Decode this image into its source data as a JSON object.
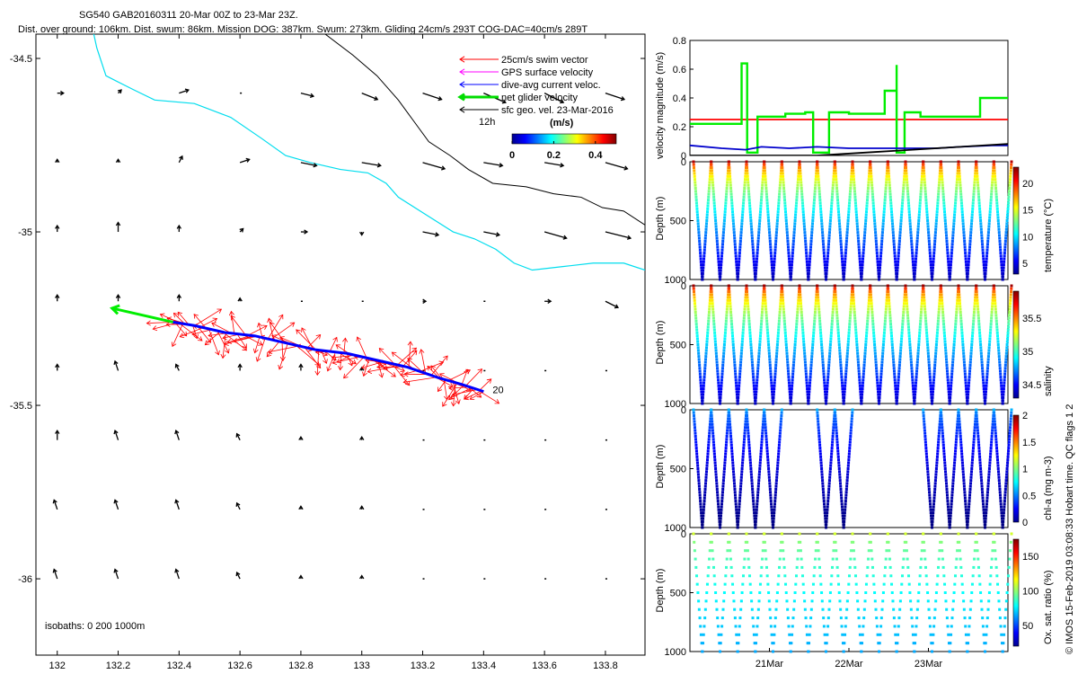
{
  "header": {
    "title_line1": "SG540 GAB20160311 20-Mar 00Z to 23-Mar 23Z.",
    "title_line2": "Dist. over ground: 106km. Dist. swum: 86km. Mission DOG: 387km. Swum: 273km. Gliding 24cm/s 293T COG-DAC=40cm/s 289T"
  },
  "side_note": "© IMOS 15-Feb-2019 03:08:33 Hobart time. QC flags 1  2",
  "chart_data": [
    {
      "type": "map",
      "xlim": [
        131.93,
        133.93
      ],
      "ylim": [
        -36.22,
        -34.43
      ],
      "xticks": [
        132,
        132.2,
        132.4,
        132.6,
        132.8,
        133,
        133.2,
        133.4,
        133.6,
        133.8
      ],
      "xtick_labels": [
        "132",
        "132.2",
        "132.4",
        "132.6",
        "132.8",
        "133",
        "133.2",
        "133.4",
        "133.6",
        "133.8"
      ],
      "yticks": [
        -34.5,
        -35,
        -35.5,
        -36
      ],
      "ytick_labels": [
        "-34.5",
        "-35",
        "-35.5",
        "-36"
      ],
      "legend": {
        "placement": "top-right",
        "items": [
          {
            "label": "25cm/s swim vector",
            "color": "#ff0000"
          },
          {
            "label": "GPS surface velocity",
            "color": "#ff00ff"
          },
          {
            "label": "dive-avg current veloc.",
            "color": "#0000ff"
          },
          {
            "label": "net glider velocity",
            "color": "#00dd00"
          },
          {
            "label": "sfc geo. vel. 23-Mar-2016",
            "color": "#000000"
          }
        ],
        "extra_label": "12h"
      },
      "colorbar": {
        "label": "(m/s)",
        "ticks": [
          0,
          0.2,
          0.4
        ],
        "tick_labels": [
          "0",
          "0.2",
          "0.4"
        ],
        "range": [
          0,
          0.5
        ]
      },
      "isobath_label": "isobaths: 0   200   1000m",
      "isobath_200": [
        [
          132.12,
          -34.43
        ],
        [
          132.13,
          -34.47
        ],
        [
          132.16,
          -34.55
        ],
        [
          132.25,
          -34.59
        ],
        [
          132.32,
          -34.62
        ],
        [
          132.45,
          -34.63
        ],
        [
          132.57,
          -34.67
        ],
        [
          132.67,
          -34.73
        ],
        [
          132.75,
          -34.78
        ],
        [
          132.83,
          -34.8
        ],
        [
          132.93,
          -34.82
        ],
        [
          133.02,
          -34.83
        ],
        [
          133.08,
          -34.86
        ],
        [
          133.12,
          -34.9
        ],
        [
          133.21,
          -34.95
        ],
        [
          133.3,
          -35.0
        ],
        [
          133.37,
          -35.02
        ],
        [
          133.44,
          -35.05
        ],
        [
          133.5,
          -35.09
        ],
        [
          133.56,
          -35.11
        ],
        [
          133.66,
          -35.1
        ],
        [
          133.76,
          -35.09
        ],
        [
          133.86,
          -35.09
        ],
        [
          133.93,
          -35.11
        ]
      ],
      "isobath_1000": [
        [
          132.88,
          -34.43
        ],
        [
          132.97,
          -34.49
        ],
        [
          133.05,
          -34.55
        ],
        [
          133.12,
          -34.62
        ],
        [
          133.17,
          -34.68
        ],
        [
          133.22,
          -34.74
        ],
        [
          133.29,
          -34.78
        ],
        [
          133.35,
          -34.82
        ],
        [
          133.43,
          -34.86
        ],
        [
          133.54,
          -34.87
        ],
        [
          133.63,
          -34.89
        ],
        [
          133.72,
          -34.9
        ],
        [
          133.79,
          -34.93
        ],
        [
          133.86,
          -34.94
        ],
        [
          133.93,
          -34.98
        ]
      ],
      "track": [
        [
          132.38,
          -35.26
        ],
        [
          132.45,
          -35.27
        ],
        [
          132.55,
          -35.29
        ],
        [
          132.65,
          -35.3
        ],
        [
          132.75,
          -35.32
        ],
        [
          132.85,
          -35.34
        ],
        [
          132.95,
          -35.35
        ],
        [
          133.05,
          -35.37
        ],
        [
          133.15,
          -35.39
        ],
        [
          133.25,
          -35.42
        ],
        [
          133.33,
          -35.44
        ],
        [
          133.4,
          -35.46
        ]
      ],
      "track_label": "20",
      "net_velocity_arrow": {
        "from": [
          132.38,
          -35.26
        ],
        "to": [
          132.18,
          -35.22
        ]
      },
      "grid_lon": [
        132.0,
        132.2,
        132.4,
        132.6,
        132.8,
        133.0,
        133.2,
        133.4,
        133.6,
        133.8
      ],
      "grid_lat": [
        -34.6,
        -34.8,
        -35.0,
        -35.2,
        -35.4,
        -35.6,
        -35.8,
        -36.0
      ],
      "sfc_vectors": [
        [
          [
            0.02,
            0.0
          ],
          [
            0.01,
            0.01
          ],
          [
            0.03,
            0.01
          ],
          [
            0.0,
            0.0
          ],
          [
            0.04,
            -0.01
          ],
          [
            0.05,
            -0.02
          ],
          [
            0.06,
            -0.02
          ],
          [
            0.07,
            -0.03
          ],
          [
            0.06,
            -0.03
          ],
          [
            0.06,
            -0.02
          ]
        ],
        [
          [
            0.0,
            0.01
          ],
          [
            0.0,
            0.01
          ],
          [
            0.01,
            0.02
          ],
          [
            0.03,
            0.01
          ],
          [
            0.05,
            -0.01
          ],
          [
            0.06,
            -0.01
          ],
          [
            0.07,
            -0.02
          ],
          [
            0.06,
            -0.01
          ],
          [
            0.06,
            -0.01
          ],
          [
            0.07,
            -0.02
          ]
        ],
        [
          [
            0.0,
            0.02
          ],
          [
            0.0,
            0.03
          ],
          [
            0.0,
            0.02
          ],
          [
            0.01,
            0.01
          ],
          [
            0.02,
            0.0
          ],
          [
            0.0,
            -0.01
          ],
          [
            0.05,
            -0.01
          ],
          [
            0.05,
            -0.01
          ],
          [
            0.07,
            -0.02
          ],
          [
            0.08,
            -0.02
          ]
        ],
        [
          [
            0.0,
            0.02
          ],
          [
            0.0,
            0.02
          ],
          [
            0.0,
            0.02
          ],
          [
            0.0,
            0.01
          ],
          [
            0.0,
            0.0
          ],
          [
            0.0,
            0.0
          ],
          [
            0.01,
            0.0
          ],
          [
            0.0,
            0.0
          ],
          [
            0.02,
            0.0
          ],
          [
            0.04,
            -0.02
          ]
        ],
        [
          [
            0.0,
            0.02
          ],
          [
            -0.01,
            0.03
          ],
          [
            -0.01,
            0.02
          ],
          [
            0.0,
            0.02
          ],
          [
            0.0,
            0.02
          ],
          [
            0.0,
            0.01
          ],
          [
            0.0,
            0.0
          ],
          [
            0.0,
            0.0
          ],
          [
            0.0,
            0.0
          ],
          [
            0.0,
            0.0
          ]
        ],
        [
          [
            0.0,
            0.03
          ],
          [
            -0.01,
            0.03
          ],
          [
            -0.01,
            0.03
          ],
          [
            -0.01,
            0.02
          ],
          [
            0.0,
            0.01
          ],
          [
            0.0,
            0.01
          ],
          [
            0.0,
            0.0
          ],
          [
            0.0,
            0.0
          ],
          [
            0.0,
            0.0
          ],
          [
            0.0,
            0.0
          ]
        ],
        [
          [
            -0.01,
            0.03
          ],
          [
            -0.01,
            0.03
          ],
          [
            -0.01,
            0.03
          ],
          [
            -0.01,
            0.02
          ],
          [
            0.0,
            0.01
          ],
          [
            0.0,
            0.01
          ],
          [
            0.0,
            0.0
          ],
          [
            0.0,
            0.0
          ],
          [
            0.0,
            0.0
          ],
          [
            0.0,
            0.0
          ]
        ],
        [
          [
            -0.01,
            0.03
          ],
          [
            -0.01,
            0.03
          ],
          [
            -0.01,
            0.03
          ],
          [
            -0.01,
            0.02
          ],
          [
            0.0,
            0.01
          ],
          [
            0.0,
            0.01
          ],
          [
            0.0,
            0.0
          ],
          [
            0.0,
            0.0
          ],
          [
            0.0,
            0.0
          ],
          [
            0.0,
            0.0
          ]
        ]
      ]
    },
    {
      "type": "line",
      "ylabel": "velocity magnitude (m/s)",
      "ylim": [
        0,
        0.8
      ],
      "yticks": [
        0,
        0.2,
        0.4,
        0.6,
        0.8
      ],
      "ytick_labels": [
        "0",
        "0.2",
        "0.4",
        "0.6",
        "0.8"
      ],
      "xlim_days": [
        0,
        4
      ],
      "series": [
        {
          "color": "#ff0000",
          "values": [
            [
              0,
              0.25
            ],
            [
              4,
              0.25
            ]
          ]
        },
        {
          "color": "#00ee00",
          "values": [
            [
              0,
              0.22
            ],
            [
              0.65,
              0.22
            ],
            [
              0.65,
              0.64
            ],
            [
              0.72,
              0.64
            ],
            [
              0.72,
              0.02
            ],
            [
              0.85,
              0.02
            ],
            [
              0.85,
              0.27
            ],
            [
              1.2,
              0.27
            ],
            [
              1.2,
              0.29
            ],
            [
              1.45,
              0.29
            ],
            [
              1.45,
              0.3
            ],
            [
              1.55,
              0.3
            ],
            [
              1.55,
              0.02
            ],
            [
              1.75,
              0.02
            ],
            [
              1.75,
              0.3
            ],
            [
              2.0,
              0.3
            ],
            [
              2.0,
              0.29
            ],
            [
              2.45,
              0.29
            ],
            [
              2.45,
              0.45
            ],
            [
              2.6,
              0.45
            ],
            [
              2.6,
              0.63
            ],
            [
              2.6,
              0.02
            ],
            [
              2.7,
              0.02
            ],
            [
              2.7,
              0.3
            ],
            [
              2.9,
              0.3
            ],
            [
              2.9,
              0.27
            ],
            [
              3.65,
              0.27
            ],
            [
              3.65,
              0.4
            ],
            [
              4,
              0.4
            ]
          ]
        },
        {
          "color": "#0000cc",
          "values": [
            [
              0,
              0.07
            ],
            [
              0.4,
              0.05
            ],
            [
              0.7,
              0.04
            ],
            [
              0.9,
              0.06
            ],
            [
              1.25,
              0.05
            ],
            [
              1.6,
              0.06
            ],
            [
              2.0,
              0.05
            ],
            [
              2.4,
              0.05
            ],
            [
              2.75,
              0.05
            ],
            [
              3.1,
              0.05
            ],
            [
              3.4,
              0.06
            ],
            [
              3.8,
              0.07
            ],
            [
              4,
              0.07
            ]
          ]
        },
        {
          "color": "#000000",
          "values": [
            [
              0,
              0
            ],
            [
              1.6,
              0.0
            ],
            [
              2.2,
              0.02
            ],
            [
              2.8,
              0.04
            ],
            [
              3.4,
              0.06
            ],
            [
              4,
              0.08
            ]
          ]
        }
      ]
    },
    {
      "type": "scatter",
      "ylabel": "Depth (m)",
      "colorbar_label": "temperature (°C)",
      "ylim": [
        1000,
        0
      ],
      "yticks": [
        0,
        500,
        1000
      ],
      "ytick_labels": [
        "0",
        "500",
        "1000"
      ],
      "colorbar_ticks": [
        5,
        10,
        15,
        20
      ],
      "colorbar_tick_labels": [
        "5",
        "10",
        "15",
        "20"
      ],
      "colorbar_range": [
        3,
        23
      ],
      "dives": 18,
      "surface_value": 22,
      "bottom_value": 4,
      "max_depth": 1000
    },
    {
      "type": "scatter",
      "ylabel": "Depth (m)",
      "colorbar_label": "salinity",
      "ylim": [
        1000,
        0
      ],
      "yticks": [
        0,
        500,
        1000
      ],
      "ytick_labels": [
        "0",
        "500",
        "1000"
      ],
      "colorbar_ticks": [
        34.5,
        35,
        35.5
      ],
      "colorbar_tick_labels": [
        "34.5",
        "35",
        "35.5"
      ],
      "colorbar_range": [
        34.3,
        35.9
      ],
      "dives": 18,
      "surface_value": 35.85,
      "bottom_value": 34.4,
      "max_depth": 1000
    },
    {
      "type": "scatter",
      "ylabel": "Depth (m)",
      "colorbar_label": "chl-a (mg m-3)",
      "ylim": [
        1000,
        0
      ],
      "yticks": [
        0,
        500,
        1000
      ],
      "ytick_labels": [
        "0",
        "500",
        "1000"
      ],
      "colorbar_ticks": [
        0,
        0.5,
        1,
        1.5,
        2
      ],
      "colorbar_tick_labels": [
        "0",
        "0.5",
        "1",
        "1.5",
        "2"
      ],
      "colorbar_range": [
        0,
        2
      ],
      "dives": 18,
      "missing_dives": [
        5,
        6,
        9,
        10,
        11,
        12
      ],
      "surface_value": 0.6,
      "bottom_value": 0.0,
      "max_depth": 1000
    },
    {
      "type": "scatter",
      "ylabel": "Depth (m)",
      "colorbar_label": "Ox. sat. ratio (%)",
      "ylim": [
        1000,
        0
      ],
      "yticks": [
        0,
        500,
        1000
      ],
      "ytick_labels": [
        "0",
        "500",
        "1000"
      ],
      "colorbar_ticks": [
        50,
        100,
        150
      ],
      "colorbar_tick_labels": [
        "50",
        "100",
        "150"
      ],
      "colorbar_range": [
        20,
        175
      ],
      "dives": 18,
      "surface_value": 110,
      "bottom_value": 65,
      "max_depth": 1000
    }
  ],
  "time_axis": {
    "ticks_days": [
      1,
      2,
      3
    ],
    "tick_labels": [
      "21Mar",
      "22Mar",
      "23Mar"
    ]
  }
}
